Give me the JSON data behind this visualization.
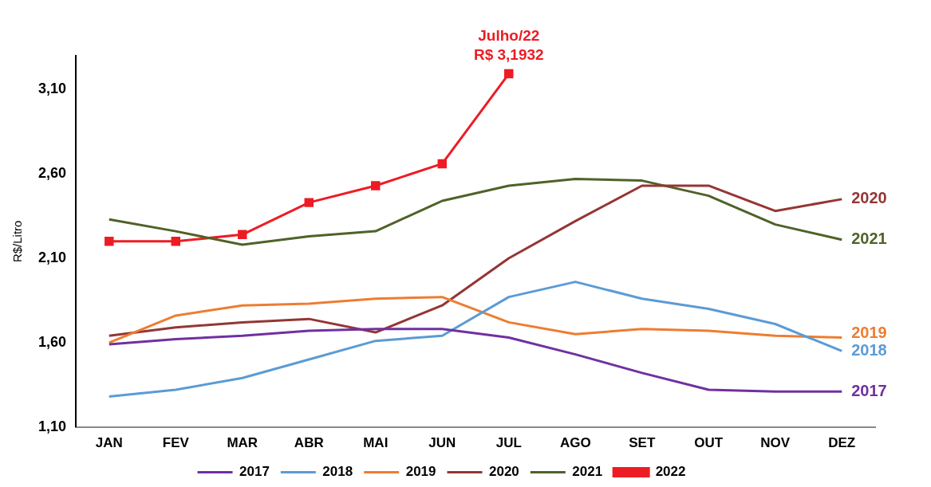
{
  "chart_data": {
    "type": "line",
    "ylabel": "R$/Litro",
    "categories": [
      "JAN",
      "FEV",
      "MAR",
      "ABR",
      "MAI",
      "JUN",
      "JUL",
      "AGO",
      "SET",
      "OUT",
      "NOV",
      "DEZ"
    ],
    "ylim": [
      1.1,
      3.3
    ],
    "yticks": [
      {
        "value": 1.1,
        "label": "1,10"
      },
      {
        "value": 1.6,
        "label": "1,60"
      },
      {
        "value": 2.1,
        "label": "2,10"
      },
      {
        "value": 2.6,
        "label": "2,60"
      },
      {
        "value": 3.1,
        "label": "3,10"
      }
    ],
    "grid": false,
    "legend": "bottom",
    "line_style": "solid",
    "series": [
      {
        "name": "2017",
        "color": "#7030a0",
        "marker": "none",
        "values": [
          1.59,
          1.62,
          1.64,
          1.67,
          1.68,
          1.68,
          1.63,
          1.53,
          1.42,
          1.32,
          1.31,
          1.31
        ]
      },
      {
        "name": "2018",
        "color": "#5b9bd5",
        "marker": "none",
        "values": [
          1.28,
          1.32,
          1.39,
          1.5,
          1.61,
          1.64,
          1.87,
          1.96,
          1.86,
          1.8,
          1.71,
          1.55
        ]
      },
      {
        "name": "2019",
        "color": "#ed7d31",
        "marker": "none",
        "values": [
          1.6,
          1.76,
          1.82,
          1.83,
          1.86,
          1.87,
          1.72,
          1.65,
          1.68,
          1.67,
          1.64,
          1.63
        ]
      },
      {
        "name": "2020",
        "color": "#943634",
        "marker": "none",
        "values": [
          1.64,
          1.69,
          1.72,
          1.74,
          1.66,
          1.82,
          2.1,
          2.32,
          2.53,
          2.53,
          2.38,
          2.45
        ]
      },
      {
        "name": "2021",
        "color": "#4f6228",
        "marker": "none",
        "values": [
          2.33,
          2.26,
          2.18,
          2.23,
          2.26,
          2.44,
          2.53,
          2.57,
          2.56,
          2.47,
          2.3,
          2.21
        ]
      },
      {
        "name": "2022",
        "color": "#ed1c24",
        "marker": "square",
        "values": [
          2.2,
          2.2,
          2.24,
          2.43,
          2.53,
          2.66,
          3.1932,
          null,
          null,
          null,
          null,
          null
        ]
      }
    ],
    "annotations": [
      {
        "text": "Julho/22\nR$ 3,1932",
        "x": "JUL",
        "y": 3.1932
      }
    ]
  }
}
